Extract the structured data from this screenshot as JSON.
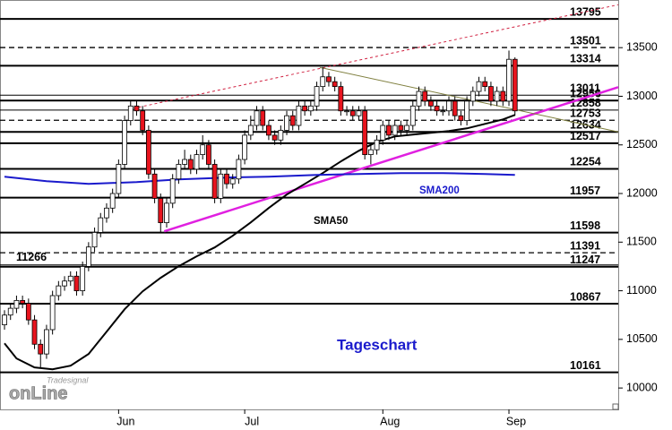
{
  "chart_data": {
    "type": "candlestick",
    "categories": [
      null,
      null,
      null,
      null,
      null,
      null,
      null,
      null,
      null,
      null,
      null,
      null,
      null,
      null,
      null,
      null,
      null,
      null,
      null,
      "Jun",
      null,
      null,
      null,
      null,
      null,
      null,
      null,
      null,
      null,
      null,
      null,
      null,
      null,
      null,
      null,
      null,
      null,
      null,
      null,
      null,
      "Jul",
      null,
      null,
      null,
      null,
      null,
      null,
      null,
      null,
      null,
      null,
      null,
      null,
      null,
      null,
      null,
      null,
      null,
      null,
      null,
      null,
      null,
      null,
      "Aug",
      null,
      null,
      null,
      null,
      null,
      null,
      null,
      null,
      null,
      null,
      null,
      null,
      null,
      null,
      null,
      null,
      null,
      null,
      null,
      null,
      "Sep",
      null
    ],
    "open": [
      10650,
      10750,
      10820,
      10900,
      10870,
      10700,
      10450,
      10350,
      10600,
      10950,
      11050,
      11100,
      11150,
      11000,
      11250,
      11450,
      11600,
      11750,
      11850,
      12000,
      12300,
      12750,
      12900,
      12850,
      12650,
      12200,
      11950,
      11700,
      11900,
      12150,
      12300,
      12350,
      12250,
      12400,
      12500,
      12300,
      11950,
      12200,
      12100,
      12150,
      12350,
      12600,
      12700,
      12850,
      12700,
      12600,
      12550,
      12650,
      12800,
      12700,
      12900,
      12850,
      12900,
      13100,
      13200,
      13150,
      13100,
      12850,
      12850,
      12800,
      12850,
      12400,
      12450,
      12550,
      12700,
      12600,
      12700,
      12650,
      12700,
      12900,
      13050,
      12950,
      12900,
      12850,
      12850,
      12950,
      12800,
      12750,
      12950,
      13050,
      13150,
      13100,
      12950,
      13050,
      12950,
      13380
    ],
    "high": [
      10800,
      10870,
      10950,
      10950,
      10920,
      10750,
      10500,
      10650,
      11000,
      11100,
      11150,
      11200,
      11200,
      11300,
      11500,
      11650,
      11800,
      11900,
      12050,
      12350,
      12800,
      12950,
      12950,
      12900,
      12700,
      12250,
      12000,
      11950,
      12200,
      12350,
      12450,
      12400,
      12450,
      12600,
      12550,
      12350,
      12250,
      12250,
      12200,
      12400,
      12650,
      12800,
      12900,
      12900,
      12750,
      12650,
      12700,
      12850,
      12850,
      12950,
      12950,
      12950,
      13150,
      13300,
      13250,
      13200,
      13150,
      12900,
      12900,
      12900,
      12900,
      12500,
      12600,
      12750,
      12750,
      12750,
      12750,
      12750,
      12950,
      13100,
      13100,
      13000,
      12950,
      12900,
      13000,
      13000,
      12850,
      13000,
      13100,
      13200,
      13200,
      13150,
      13100,
      13100,
      13470,
      13400
    ],
    "low": [
      10600,
      10700,
      10770,
      10820,
      10650,
      10400,
      10200,
      10300,
      10550,
      10900,
      11000,
      11050,
      10950,
      10950,
      11200,
      11400,
      11550,
      11700,
      11800,
      11950,
      12250,
      12700,
      12800,
      12600,
      12150,
      11900,
      11600,
      11650,
      11850,
      12100,
      12250,
      12200,
      12200,
      12350,
      12250,
      11900,
      11900,
      12050,
      12050,
      12100,
      12300,
      12550,
      12650,
      12650,
      12550,
      12500,
      12500,
      12600,
      12650,
      12650,
      12800,
      12800,
      12850,
      13050,
      13100,
      13050,
      12800,
      12800,
      12750,
      12750,
      12350,
      12300,
      12400,
      12500,
      12550,
      12550,
      12600,
      12600,
      12650,
      12850,
      12900,
      12850,
      12800,
      12800,
      12800,
      12750,
      12700,
      12700,
      12900,
      13000,
      13050,
      12900,
      12900,
      12900,
      12900,
      12800
    ],
    "close": [
      10750,
      10820,
      10900,
      10870,
      10700,
      10450,
      10350,
      10600,
      10950,
      11050,
      11100,
      11150,
      11000,
      11250,
      11450,
      11600,
      11750,
      11850,
      12000,
      12300,
      12750,
      12900,
      12850,
      12650,
      12200,
      11950,
      11700,
      11900,
      12150,
      12300,
      12350,
      12250,
      12400,
      12500,
      12300,
      11950,
      12200,
      12100,
      12150,
      12350,
      12600,
      12700,
      12850,
      12700,
      12600,
      12550,
      12650,
      12800,
      12700,
      12900,
      12850,
      12900,
      13100,
      13200,
      13150,
      13100,
      12850,
      12850,
      12800,
      12850,
      12400,
      12450,
      12550,
      12700,
      12600,
      12700,
      12650,
      12700,
      12900,
      13050,
      12950,
      12900,
      12850,
      12850,
      12950,
      12800,
      12750,
      12950,
      13050,
      13150,
      13100,
      12950,
      13050,
      12950,
      13380,
      12850
    ],
    "up_color": "#ffffff",
    "down_color": "#e8141e",
    "xlim": [
      -0.75,
      102.2
    ],
    "ylim": [
      9780,
      13990
    ],
    "yticks": [
      10000,
      10500,
      11000,
      11500,
      12000,
      12500,
      13000,
      13500
    ],
    "levels": [
      {
        "value": 13795,
        "style": "solid"
      },
      {
        "value": 13501,
        "style": "dashed"
      },
      {
        "value": 13314,
        "style": "solid"
      },
      {
        "value": 13011,
        "style": "thin"
      },
      {
        "value": 12956,
        "style": "solid"
      },
      {
        "value": 12858,
        "style": "thin"
      },
      {
        "value": 12753,
        "style": "dashed"
      },
      {
        "value": 12634,
        "style": "solid"
      },
      {
        "value": 12517,
        "style": "solid"
      },
      {
        "value": 12254,
        "style": "solid"
      },
      {
        "value": 11957,
        "style": "solid"
      },
      {
        "value": 11598,
        "style": "solid"
      },
      {
        "value": 11391,
        "style": "dashed"
      },
      {
        "value": 11266,
        "style": "thin",
        "side": "left"
      },
      {
        "value": 11247,
        "style": "solid"
      },
      {
        "value": 10867,
        "style": "solid"
      },
      {
        "value": 10161,
        "style": "solid"
      }
    ],
    "indicators": [
      {
        "name": "SMA50",
        "color": "#000000",
        "x": [
          0,
          2,
          5,
          8,
          11,
          14,
          17,
          20,
          23,
          26,
          29,
          32,
          35,
          38,
          41,
          44,
          47,
          50,
          53,
          56,
          59,
          62,
          65,
          68,
          71,
          74,
          77,
          80,
          83,
          85
        ],
        "values": [
          10460,
          10304,
          10212,
          10193,
          10230,
          10350,
          10580,
          10810,
          10994,
          11133,
          11252,
          11354,
          11446,
          11565,
          11703,
          11851,
          11989,
          12099,
          12210,
          12330,
          12440,
          12532,
          12587,
          12606,
          12624,
          12643,
          12670,
          12716,
          12762,
          12808
        ]
      },
      {
        "name": "SMA200",
        "color": "#1a1acc",
        "x": [
          0,
          7,
          14,
          22,
          29,
          37,
          44,
          52,
          59,
          66,
          73,
          80,
          85
        ],
        "values": [
          12173,
          12127,
          12099,
          12118,
          12145,
          12164,
          12173,
          12192,
          12201,
          12210,
          12210,
          12201,
          12192
        ]
      }
    ],
    "trendlines": [
      {
        "color": "#e020e0",
        "style": "solid",
        "x": [
          26.6,
          102.2
        ],
        "values": [
          11611,
          13094
        ]
      },
      {
        "color": "#d02040",
        "style": "dotted",
        "x": [
          20.6,
          102.2
        ],
        "values": [
          12864,
          13941
        ]
      },
      {
        "color": "#808040",
        "style": "solid",
        "x": [
          52.5,
          102.2
        ],
        "values": [
          13297,
          12634
        ]
      }
    ],
    "annotation": "Tageschart",
    "logo": [
      "Tradesignal",
      "onLine"
    ]
  }
}
